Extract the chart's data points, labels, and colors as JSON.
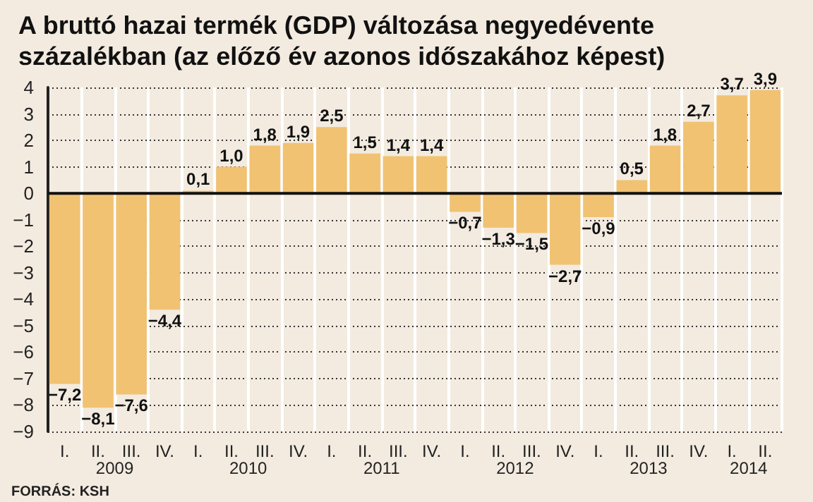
{
  "chart_data": {
    "type": "bar",
    "title": "A bruttó hazai termék (GDP) változása negyedévente százalékban (az előző év azonos időszakához képest)",
    "categories": [
      "I.",
      "II.",
      "III.",
      "IV.",
      "I.",
      "II.",
      "III.",
      "IV.",
      "I.",
      "II.",
      "III.",
      "IV.",
      "I.",
      "II.",
      "III.",
      "IV.",
      "I.",
      "II.",
      "III.",
      "IV.",
      "I.",
      "II."
    ],
    "values": [
      -7.2,
      -8.1,
      -7.6,
      -4.4,
      0.1,
      1.0,
      1.8,
      1.9,
      2.5,
      1.5,
      1.4,
      1.4,
      -0.7,
      -1.3,
      -1.5,
      -2.7,
      -0.9,
      0.5,
      1.8,
      2.7,
      3.7,
      3.9
    ],
    "value_labels": [
      "−7,2",
      "−8,1",
      "−7,6",
      "−4,4",
      "0,1",
      "1,0",
      "1,8",
      "1,9",
      "2,5",
      "1,5",
      "1,4",
      "1,4",
      "−0,7",
      "−1,3",
      "−1,5",
      "−2,7",
      "−0,9",
      "0,5",
      "1,8",
      "2,7",
      "3,7",
      "3,9"
    ],
    "color": "#f0c272",
    "ylim": [
      -9,
      4
    ],
    "yticks": [
      4,
      3,
      2,
      1,
      0,
      {
        "value": -1,
        "label": "−1"
      },
      {
        "value": -2,
        "label": "−2"
      },
      {
        "value": -3,
        "label": "−3"
      },
      {
        "value": -4,
        "label": "−4"
      },
      {
        "value": -5,
        "label": "−5"
      },
      {
        "value": -6,
        "label": "−6"
      },
      {
        "value": -7,
        "label": "−7"
      },
      {
        "value": -8,
        "label": "−8"
      },
      {
        "value": -9,
        "label": "−9"
      }
    ],
    "grid": true,
    "annotations": [
      "2009",
      "2010",
      "2011",
      "2012",
      "2013",
      "2014",
      "FORRÁS: KSH"
    ]
  }
}
